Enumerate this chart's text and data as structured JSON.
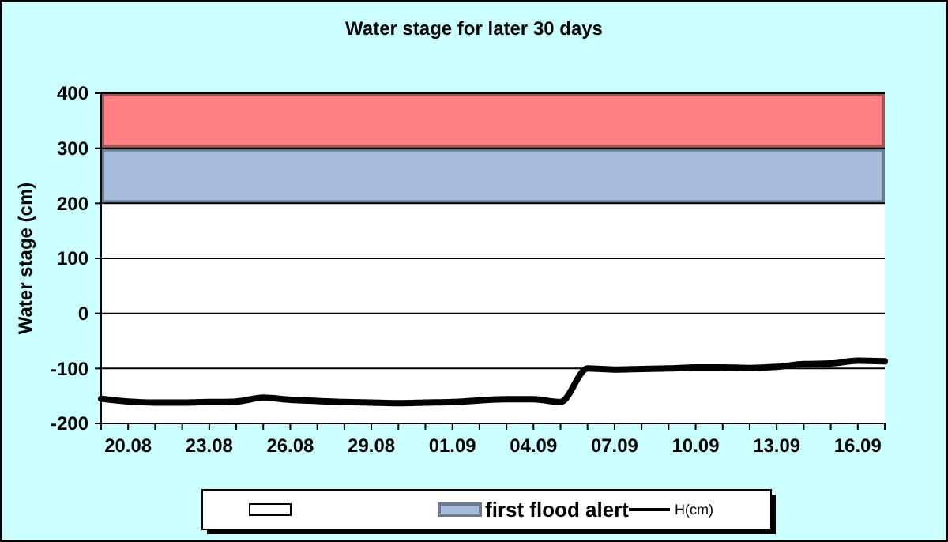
{
  "chart_data": {
    "type": "line",
    "title": "Water stage for later 30 days",
    "ylabel": "Water stage (cm)",
    "x": [
      "--08-19",
      "--08-20",
      "--08-21",
      "--08-22",
      "--08-23",
      "--08-24",
      "--08-25",
      "--08-26",
      "--08-27",
      "--08-28",
      "--08-29",
      "--08-30",
      "--08-31",
      "--09-01",
      "--09-02",
      "--09-03",
      "--09-04",
      "--09-05",
      "--09-06",
      "--09-07",
      "--09-08",
      "--09-09",
      "--09-10",
      "--09-11",
      "--09-12",
      "--09-13",
      "--09-14",
      "--09-15",
      "--09-16",
      "--09-17"
    ],
    "series": [
      {
        "name": "H(cm)",
        "color": "#000000",
        "values": [
          -155,
          -160,
          -162,
          -162,
          -161,
          -160,
          -153,
          -157,
          -159,
          -161,
          -162,
          -163,
          -162,
          -161,
          -158,
          -156,
          -156,
          -161,
          -100,
          -102,
          -101,
          -100,
          -98,
          -98,
          -99,
          -97,
          -92,
          -91,
          -86,
          -87
        ]
      }
    ],
    "xlim": [
      "--08-19",
      "--09-17"
    ],
    "xticks": [
      {
        "value": "--08-19",
        "label": null
      },
      {
        "value": "--08-20",
        "label": "20.08"
      },
      {
        "value": "--08-21",
        "label": null
      },
      {
        "value": "--08-22",
        "label": null
      },
      {
        "value": "--08-23",
        "label": "23.08"
      },
      {
        "value": "--08-24",
        "label": null
      },
      {
        "value": "--08-25",
        "label": null
      },
      {
        "value": "--08-26",
        "label": "26.08"
      },
      {
        "value": "--08-27",
        "label": null
      },
      {
        "value": "--08-28",
        "label": null
      },
      {
        "value": "--08-29",
        "label": "29.08"
      },
      {
        "value": "--08-30",
        "label": null
      },
      {
        "value": "--08-31",
        "label": null
      },
      {
        "value": "--09-01",
        "label": "01.09"
      },
      {
        "value": "--09-02",
        "label": null
      },
      {
        "value": "--09-03",
        "label": null
      },
      {
        "value": "--09-04",
        "label": "04.09"
      },
      {
        "value": "--09-05",
        "label": null
      },
      {
        "value": "--09-06",
        "label": null
      },
      {
        "value": "--09-07",
        "label": "07.09"
      },
      {
        "value": "--09-08",
        "label": null
      },
      {
        "value": "--09-09",
        "label": null
      },
      {
        "value": "--09-10",
        "label": "10.09"
      },
      {
        "value": "--09-11",
        "label": null
      },
      {
        "value": "--09-12",
        "label": null
      },
      {
        "value": "--09-13",
        "label": "13.09"
      },
      {
        "value": "--09-14",
        "label": null
      },
      {
        "value": "--09-15",
        "label": null
      },
      {
        "value": "--09-16",
        "label": "16.09"
      },
      {
        "value": "--09-17",
        "label": null
      }
    ],
    "ylim": [
      -200,
      400
    ],
    "yticks": [
      -200,
      -100,
      0,
      100,
      200,
      300,
      400
    ],
    "bands": [
      {
        "axis": "y",
        "from": 300,
        "to": 400,
        "color": "#ff8080"
      },
      {
        "axis": "y",
        "from": 200,
        "to": 300,
        "label": "first flood alert",
        "color": "#a6bcdc"
      }
    ],
    "grid": "y",
    "legend": "bottom",
    "marker": "none",
    "line_style": "solid"
  }
}
